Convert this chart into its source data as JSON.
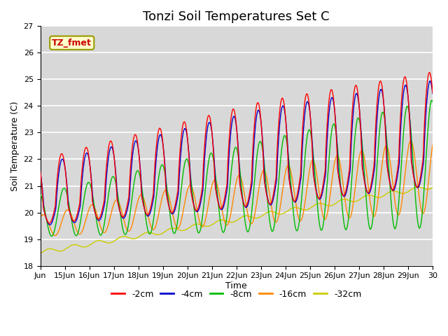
{
  "title": "Tonzi Soil Temperatures Set C",
  "xlabel": "Time",
  "ylabel": "Soil Temperature (C)",
  "ylim": [
    18.0,
    27.0
  ],
  "yticks": [
    18.0,
    19.0,
    20.0,
    21.0,
    22.0,
    23.0,
    24.0,
    25.0,
    26.0,
    27.0
  ],
  "xtick_labels": [
    "Jun",
    "15Jun",
    "16Jun",
    "17Jun",
    "18Jun",
    "19Jun",
    "20Jun",
    "21Jun",
    "22Jun",
    "23Jun",
    "24Jun",
    "25Jun",
    "26Jun",
    "27Jun",
    "28Jun",
    "29Jun",
    "30"
  ],
  "series_colors": [
    "#ff0000",
    "#0000cc",
    "#00bb00",
    "#ff8800",
    "#cccc00"
  ],
  "series_labels": [
    "-2cm",
    "-4cm",
    "-8cm",
    "-16cm",
    "-32cm"
  ],
  "legend_label": "TZ_fmet",
  "legend_box_facecolor": "#ffffcc",
  "legend_box_edgecolor": "#999900",
  "bg_color": "#d8d8d8",
  "title_fontsize": 13,
  "axis_fontsize": 9,
  "tick_fontsize": 8
}
